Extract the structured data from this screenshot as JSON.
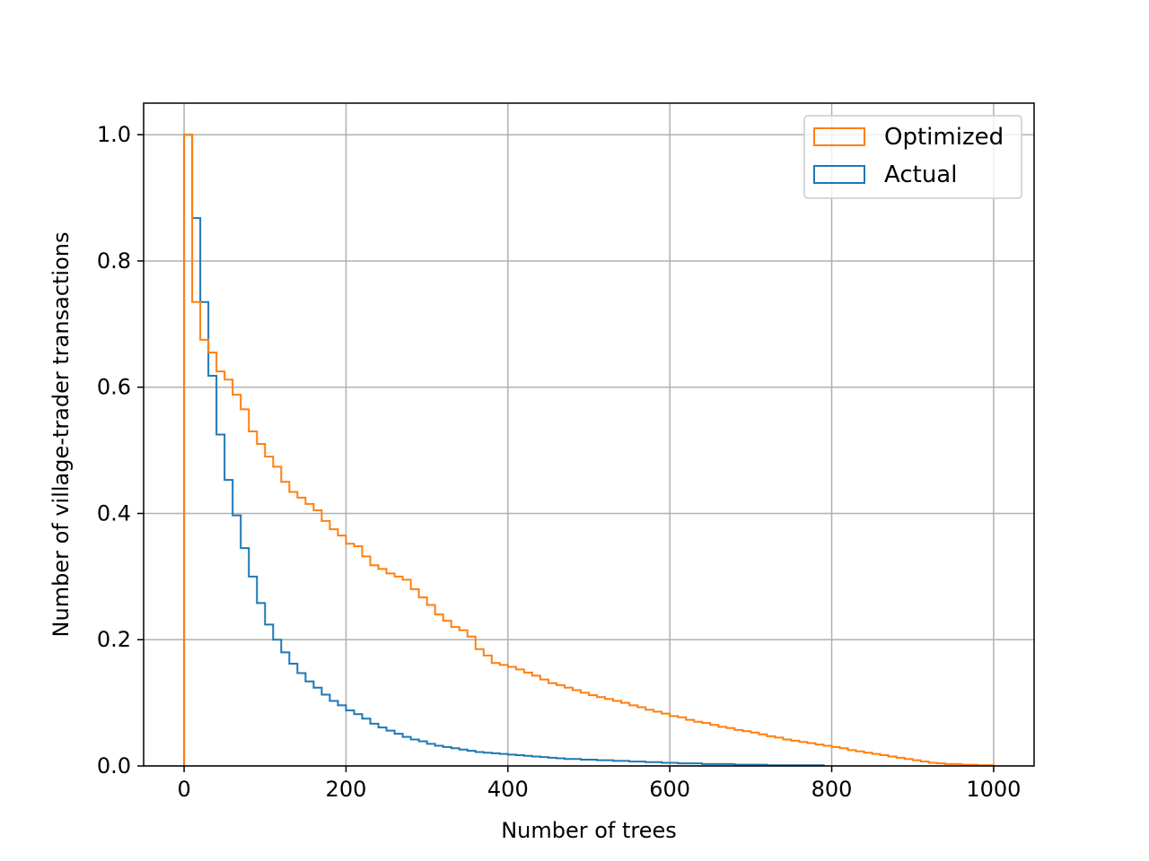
{
  "chart_data": {
    "type": "histogram-step",
    "xlabel": "Number of trees",
    "ylabel": "Number of village-trader transactions",
    "xlim": [
      -50,
      1050
    ],
    "ylim": [
      0,
      1.05
    ],
    "xticks": [
      0,
      200,
      400,
      600,
      800,
      1000
    ],
    "xtick_labels": [
      "0",
      "200",
      "400",
      "600",
      "800",
      "1000"
    ],
    "yticks": [
      0,
      0.2,
      0.4,
      0.6,
      0.8,
      1.0
    ],
    "ytick_labels": [
      "0.0",
      "0.2",
      "0.4",
      "0.6",
      "0.8",
      "1.0"
    ],
    "grid": true,
    "legend_position": "top-right",
    "series": [
      {
        "name": "Optimized",
        "color": "#ff7f0e",
        "bin_edges": [
          0,
          10,
          20,
          30,
          40,
          50,
          60,
          70,
          80,
          90,
          100,
          110,
          120,
          130,
          140,
          150,
          160,
          170,
          180,
          190,
          200,
          210,
          220,
          230,
          240,
          250,
          260,
          270,
          280,
          290,
          300,
          310,
          320,
          330,
          340,
          350,
          360,
          370,
          380,
          390,
          400,
          410,
          420,
          430,
          440,
          450,
          460,
          470,
          480,
          490,
          500,
          510,
          520,
          530,
          540,
          550,
          560,
          570,
          580,
          590,
          600,
          610,
          620,
          630,
          640,
          650,
          660,
          670,
          680,
          690,
          700,
          710,
          720,
          730,
          740,
          750,
          760,
          770,
          780,
          790,
          800,
          810,
          820,
          830,
          840,
          850,
          860,
          870,
          880,
          890,
          900,
          910,
          920,
          930,
          940,
          950,
          960,
          970,
          980,
          990,
          1000
        ],
        "values": [
          1.0,
          0.735,
          0.675,
          0.655,
          0.625,
          0.612,
          0.588,
          0.565,
          0.53,
          0.51,
          0.49,
          0.474,
          0.45,
          0.434,
          0.425,
          0.415,
          0.405,
          0.388,
          0.375,
          0.365,
          0.352,
          0.348,
          0.332,
          0.318,
          0.312,
          0.305,
          0.3,
          0.295,
          0.28,
          0.267,
          0.255,
          0.24,
          0.23,
          0.22,
          0.215,
          0.205,
          0.185,
          0.175,
          0.163,
          0.16,
          0.157,
          0.153,
          0.148,
          0.143,
          0.137,
          0.131,
          0.128,
          0.124,
          0.12,
          0.116,
          0.112,
          0.109,
          0.106,
          0.103,
          0.1,
          0.096,
          0.093,
          0.089,
          0.086,
          0.083,
          0.079,
          0.077,
          0.073,
          0.07,
          0.068,
          0.065,
          0.062,
          0.06,
          0.057,
          0.055,
          0.053,
          0.05,
          0.047,
          0.045,
          0.042,
          0.04,
          0.038,
          0.036,
          0.034,
          0.032,
          0.03,
          0.028,
          0.025,
          0.023,
          0.021,
          0.019,
          0.017,
          0.015,
          0.013,
          0.011,
          0.009,
          0.007,
          0.005,
          0.004,
          0.003,
          0.003,
          0.002,
          0.002,
          0.001,
          0.001
        ]
      },
      {
        "name": "Actual",
        "color": "#1f77b4",
        "bin_edges": [
          0,
          10,
          20,
          30,
          40,
          50,
          60,
          70,
          80,
          90,
          100,
          110,
          120,
          130,
          140,
          150,
          160,
          170,
          180,
          190,
          200,
          210,
          220,
          230,
          240,
          250,
          260,
          270,
          280,
          290,
          300,
          310,
          320,
          330,
          340,
          350,
          360,
          370,
          380,
          390,
          400,
          410,
          420,
          430,
          440,
          450,
          460,
          470,
          480,
          490,
          500,
          510,
          520,
          530,
          540,
          550,
          560,
          570,
          580,
          590,
          600,
          610,
          620,
          630,
          640,
          650,
          660,
          670,
          680,
          690,
          700,
          710,
          720,
          730,
          740,
          750,
          760,
          770,
          780,
          790
        ],
        "values": [
          1.0,
          0.868,
          0.735,
          0.618,
          0.525,
          0.453,
          0.397,
          0.345,
          0.3,
          0.258,
          0.224,
          0.2,
          0.18,
          0.162,
          0.147,
          0.134,
          0.124,
          0.113,
          0.103,
          0.096,
          0.088,
          0.082,
          0.075,
          0.067,
          0.061,
          0.056,
          0.051,
          0.046,
          0.042,
          0.039,
          0.035,
          0.032,
          0.03,
          0.028,
          0.026,
          0.024,
          0.022,
          0.021,
          0.02,
          0.019,
          0.018,
          0.017,
          0.016,
          0.015,
          0.014,
          0.013,
          0.012,
          0.011,
          0.011,
          0.01,
          0.01,
          0.009,
          0.009,
          0.008,
          0.008,
          0.007,
          0.007,
          0.006,
          0.006,
          0.005,
          0.005,
          0.004,
          0.004,
          0.004,
          0.003,
          0.003,
          0.003,
          0.003,
          0.002,
          0.002,
          0.002,
          0.002,
          0.001,
          0.001,
          0.001,
          0.001,
          0.001,
          0.001,
          0.001
        ]
      }
    ]
  }
}
